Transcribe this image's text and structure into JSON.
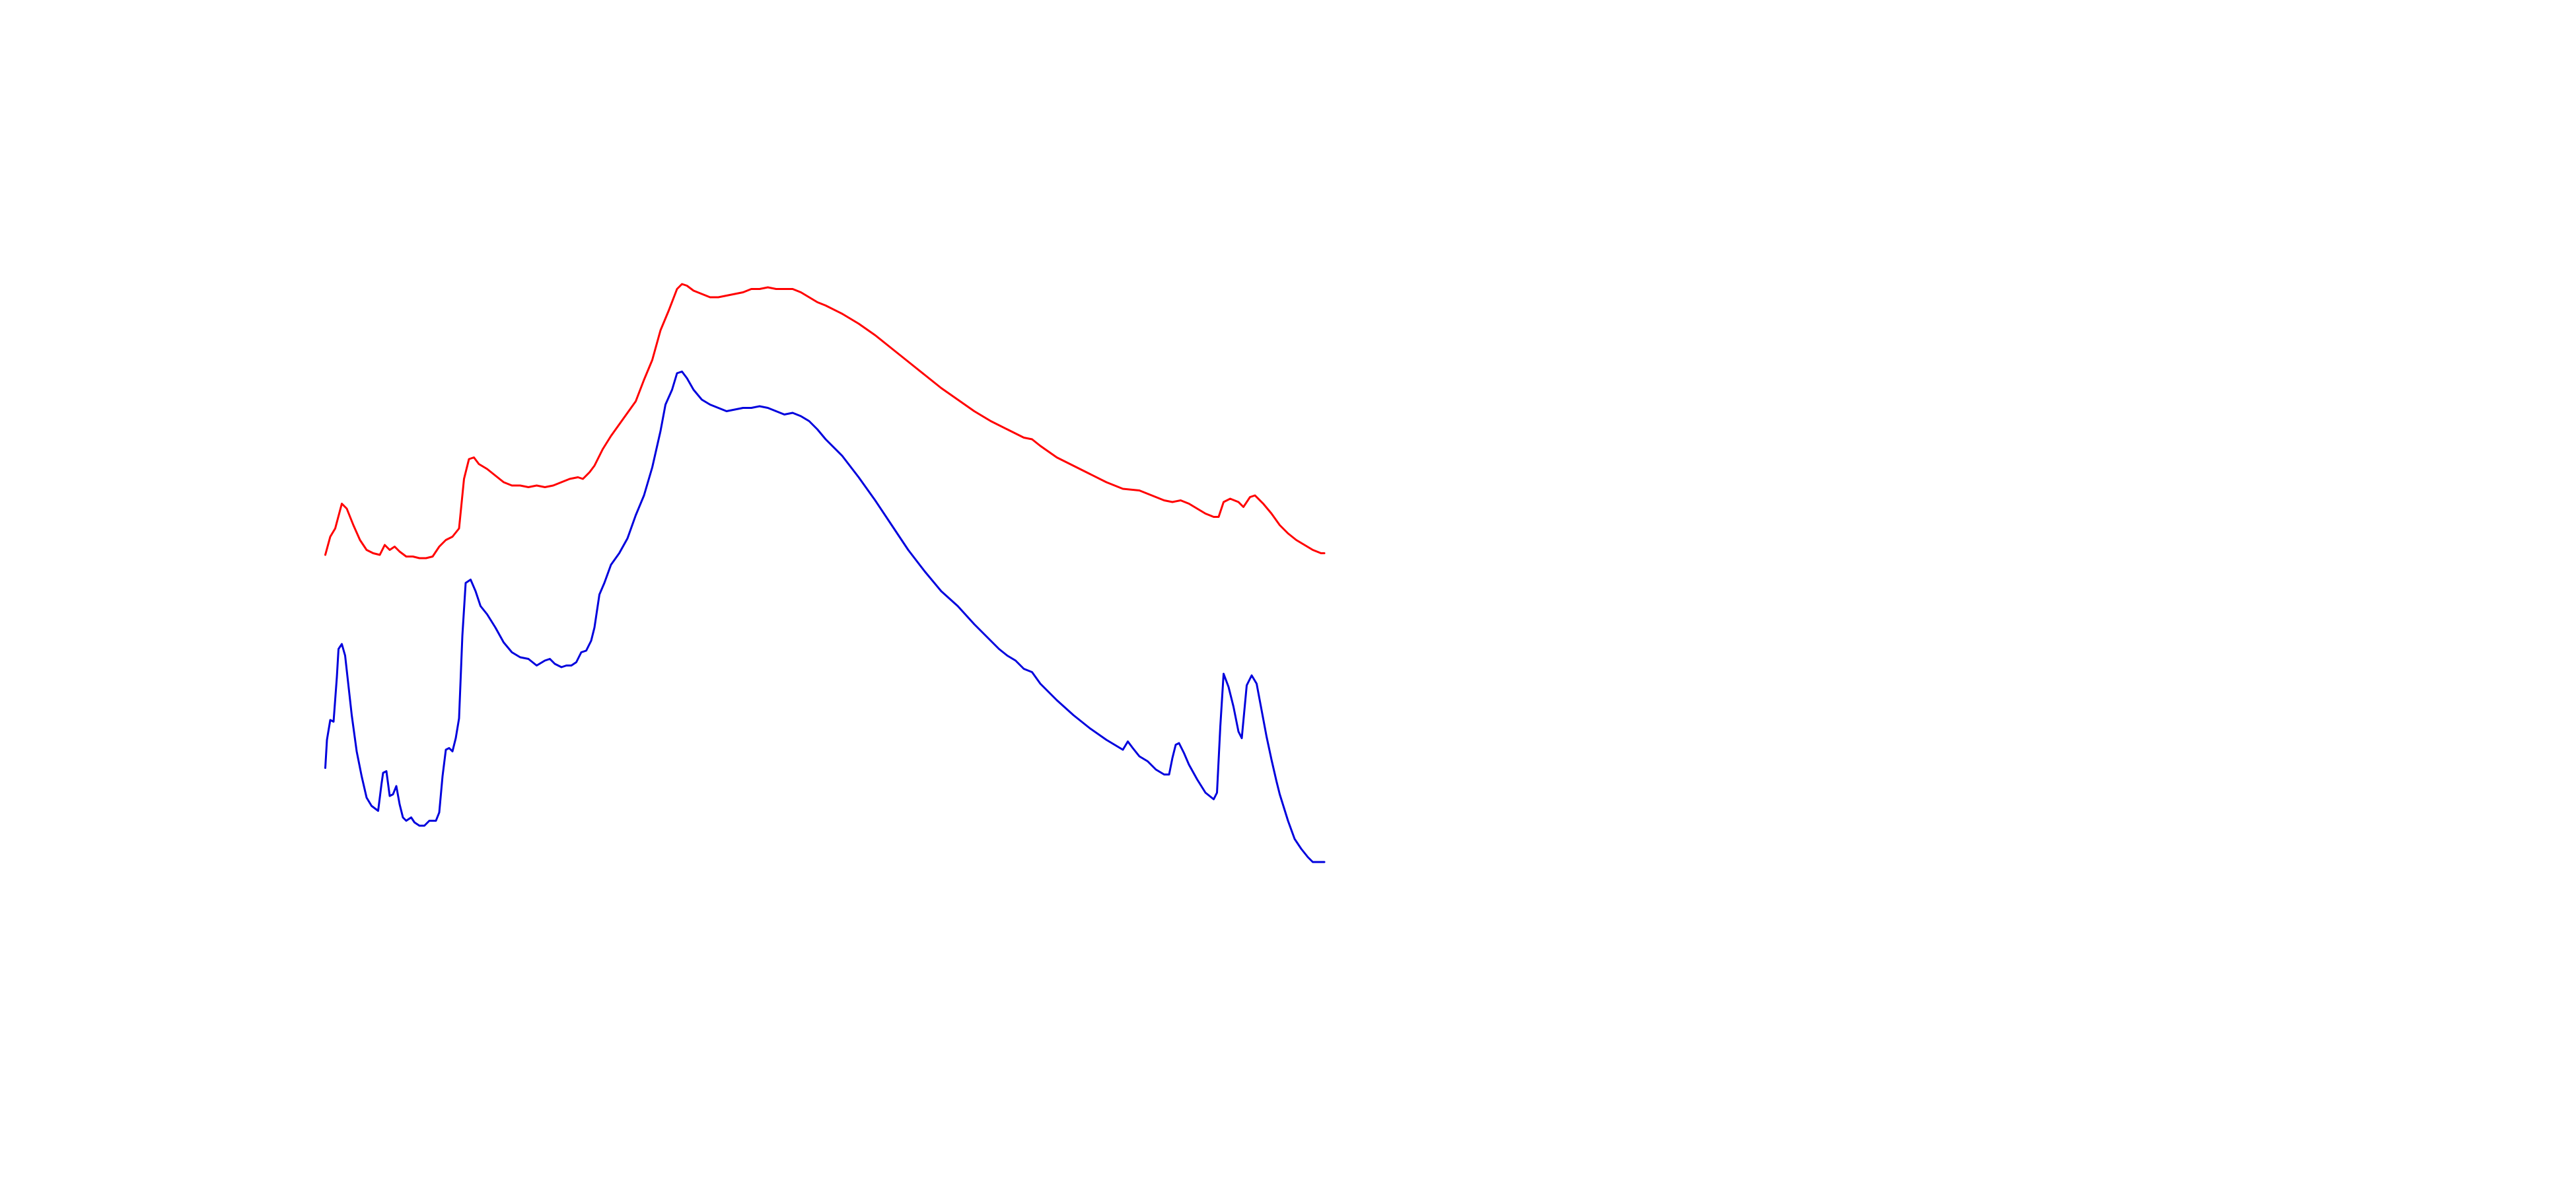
{
  "chart_data": {
    "type": "line",
    "xlim": [
      0,
      1560
    ],
    "ylim": [
      0,
      720
    ],
    "series": [
      {
        "color": "#ff0000",
        "x": [
          197,
          200,
          203,
          207,
          210,
          214,
          218,
          222,
          226,
          230,
          233,
          236,
          239,
          242,
          246,
          250,
          254,
          258,
          262,
          266,
          270,
          274,
          278,
          281,
          284,
          287,
          290,
          295,
          300,
          305,
          310,
          315,
          320,
          325,
          330,
          335,
          340,
          345,
          350,
          353,
          357,
          360,
          365,
          370,
          375,
          380,
          385,
          390,
          395,
          400,
          405,
          410,
          413,
          416,
          420,
          425,
          430,
          435,
          440,
          445,
          450,
          455,
          460,
          465,
          470,
          475,
          480,
          485,
          490,
          495,
          500,
          510,
          520,
          530,
          540,
          550,
          560,
          570,
          580,
          590,
          600,
          610,
          620,
          625,
          630,
          640,
          650,
          660,
          670,
          680,
          690,
          700,
          705,
          710,
          715,
          720,
          725,
          730,
          735,
          738,
          741,
          745,
          750,
          753,
          757,
          760,
          765,
          770,
          775,
          780,
          785,
          790,
          795,
          800,
          802
        ],
        "values": [
          384,
          395,
          400,
          415,
          412,
          402,
          393,
          387,
          385,
          384,
          390,
          387,
          389,
          386,
          383,
          383,
          382,
          382,
          383,
          389,
          393,
          395,
          400,
          430,
          442,
          443,
          439,
          436,
          432,
          428,
          426,
          426,
          425,
          426,
          425,
          426,
          428,
          430,
          431,
          430,
          434,
          438,
          448,
          456,
          463,
          470,
          477,
          490,
          502,
          520,
          532,
          545,
          548,
          547,
          544,
          542,
          540,
          540,
          541,
          542,
          543,
          545,
          545,
          546,
          545,
          545,
          545,
          543,
          540,
          537,
          535,
          530,
          524,
          517,
          509,
          501,
          493,
          485,
          478,
          471,
          465,
          460,
          455,
          454,
          450,
          443,
          438,
          433,
          428,
          424,
          423,
          419,
          417,
          416,
          417,
          415,
          412,
          409,
          407,
          407,
          416,
          418,
          416,
          413,
          419,
          420,
          415,
          409,
          402,
          397,
          393,
          390,
          387,
          385,
          385
        ]
      },
      {
        "color": "#0000dd",
        "x": [
          197,
          198,
          200,
          202,
          204,
          205,
          207,
          209,
          211,
          213,
          216,
          219,
          222,
          225,
          229,
          231,
          232,
          234,
          236,
          238,
          240,
          242,
          244,
          246,
          249,
          251,
          254,
          257,
          260,
          264,
          266,
          268,
          270,
          272,
          274,
          276,
          278,
          280,
          282,
          285,
          288,
          291,
          295,
          300,
          305,
          310,
          315,
          320,
          325,
          330,
          333,
          336,
          340,
          343,
          346,
          349,
          352,
          355,
          358,
          360,
          363,
          366,
          370,
          375,
          380,
          385,
          390,
          395,
          400,
          403,
          407,
          410,
          413,
          416,
          420,
          425,
          430,
          435,
          440,
          445,
          450,
          455,
          460,
          465,
          470,
          475,
          480,
          485,
          490,
          495,
          500,
          510,
          520,
          530,
          540,
          550,
          560,
          570,
          580,
          590,
          600,
          605,
          610,
          615,
          620,
          625,
          630,
          640,
          650,
          660,
          670,
          675,
          680,
          683,
          686,
          690,
          695,
          700,
          705,
          708,
          710,
          712,
          714,
          717,
          720,
          725,
          730,
          735,
          737,
          739,
          741,
          744,
          747,
          750,
          752,
          755,
          758,
          761,
          764,
          767,
          770,
          773,
          775,
          780,
          784,
          788,
          792,
          795,
          800,
          802
        ],
        "values": [
          255,
          272,
          284,
          283,
          310,
          327,
          330,
          323,
          305,
          287,
          265,
          250,
          237,
          232,
          229,
          245,
          252,
          253,
          238,
          239,
          244,
          233,
          225,
          223,
          225,
          222,
          220,
          220,
          223,
          223,
          228,
          250,
          266,
          267,
          265,
          273,
          285,
          335,
          367,
          369,
          362,
          353,
          348,
          340,
          331,
          325,
          322,
          321,
          317,
          320,
          321,
          318,
          316,
          317,
          317,
          319,
          325,
          326,
          332,
          340,
          360,
          367,
          378,
          385,
          394,
          408,
          420,
          437,
          459,
          475,
          484,
          494,
          495,
          491,
          484,
          478,
          475,
          473,
          471,
          472,
          473,
          473,
          474,
          473,
          471,
          469,
          470,
          468,
          465,
          460,
          454,
          444,
          431,
          417,
          402,
          387,
          374,
          362,
          353,
          342,
          332,
          327,
          323,
          320,
          315,
          313,
          306,
          296,
          287,
          279,
          272,
          269,
          266,
          271,
          267,
          262,
          259,
          254,
          251,
          251,
          261,
          269,
          270,
          264,
          257,
          248,
          240,
          236,
          240,
          280,
          312,
          304,
          292,
          277,
          273,
          305,
          311,
          306,
          290,
          274,
          260,
          247,
          239,
          223,
          212,
          206,
          201,
          198,
          198,
          198
        ]
      }
    ]
  }
}
